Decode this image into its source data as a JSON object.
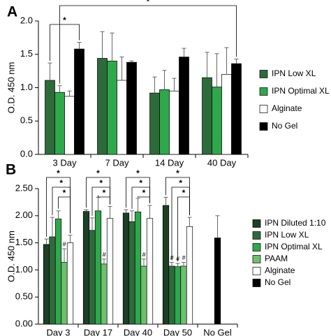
{
  "chart_data": [
    {
      "type": "bar",
      "panel_label": "A",
      "y_label": "O.D. 450 nm",
      "categories": [
        "3 Day",
        "7 Day",
        "14 Day",
        "40 Day"
      ],
      "series": [
        {
          "name": "IPN Low XL",
          "color": "#2e6b3b",
          "values": [
            1.11,
            1.44,
            0.92,
            1.15
          ],
          "errors": [
            0.26,
            0.4,
            0.24,
            0.38
          ]
        },
        {
          "name": "IPN Optimal XL",
          "color": "#2fa84c",
          "values": [
            0.93,
            1.4,
            0.97,
            1.01
          ],
          "errors": [
            0.1,
            0.42,
            0.29,
            0.5
          ]
        },
        {
          "name": "Alginate",
          "color": "#ffffff",
          "values": [
            0.87,
            1.11,
            0.95,
            1.2
          ],
          "errors": [
            0.08,
            0.35,
            0.19,
            0.4
          ]
        },
        {
          "name": "No Gel",
          "color": "#000000",
          "values": [
            1.58,
            1.38,
            1.46,
            1.36
          ],
          "errors": [
            0.1,
            0.02,
            0.13,
            0.07
          ]
        }
      ],
      "significance": [
        "*",
        "*"
      ],
      "ylim": [
        0,
        2
      ],
      "yticks": [
        {
          "value": 0,
          "label": "0.0"
        },
        {
          "value": 0.5,
          "label": "0.5"
        },
        {
          "value": 1,
          "label": "1.0"
        },
        {
          "value": 1.5,
          "label": "1.5"
        },
        {
          "value": 2,
          "label": "2.0"
        }
      ]
    },
    {
      "type": "bar",
      "panel_label": "B",
      "y_label": "O.D. 450 nm",
      "categories": [
        "Day 3",
        "Day 17",
        "Day 40",
        "Day 50",
        "No Gel"
      ],
      "series": [
        {
          "name": "IPN Diluted 1:10",
          "color": "#1d3f24",
          "values": [
            1.47,
            2.08,
            2.05,
            2.19,
            null
          ],
          "errors": [
            0.1,
            0.03,
            0.06,
            0.15,
            null
          ]
        },
        {
          "name": "IPN Low XL",
          "color": "#2e6b3b",
          "values": [
            1.61,
            1.73,
            1.89,
            1.07,
            null
          ],
          "errors": [
            0.36,
            0.23,
            0.2,
            0.07,
            null
          ],
          "annotations": [
            null,
            null,
            null,
            "#",
            null
          ]
        },
        {
          "name": "IPN Optimal XL",
          "color": "#2fa84c",
          "values": [
            1.94,
            2.09,
            2.07,
            1.06,
            null
          ],
          "errors": [
            0.15,
            0.25,
            0.25,
            0.06,
            null
          ],
          "annotations": [
            null,
            null,
            null,
            "#",
            null
          ]
        },
        {
          "name": "PAAM",
          "color": "#6cc16a",
          "values": [
            1.14,
            1.11,
            1.07,
            1.07,
            null
          ],
          "errors": [
            0.25,
            0.09,
            0.13,
            0.07,
            null
          ],
          "annotations": [
            "#",
            "#",
            "#",
            "#",
            null
          ]
        },
        {
          "name": "Alginate",
          "color": "#ffffff",
          "values": [
            1.5,
            1.95,
            1.95,
            1.8,
            null
          ],
          "errors": [
            0.14,
            0.22,
            0.24,
            0.17,
            null
          ]
        },
        {
          "name": "No Gel",
          "color": "#000000",
          "values": [
            null,
            null,
            null,
            null,
            1.59
          ],
          "errors": [
            null,
            null,
            null,
            null,
            0.41
          ]
        }
      ],
      "significance": [
        [
          "*",
          "*",
          "*"
        ],
        [
          "*",
          "*",
          "*"
        ],
        [
          "*",
          "*",
          "*"
        ],
        [
          "*",
          "*",
          "*"
        ],
        null
      ],
      "ylim": [
        0,
        2.5
      ],
      "yticks": [
        {
          "value": 0,
          "label": "0.00"
        },
        {
          "value": 0.5,
          "label": "0.50"
        },
        {
          "value": 1,
          "label": "1.00"
        },
        {
          "value": 1.5,
          "label": "1.50"
        },
        {
          "value": 2,
          "label": "2.00"
        },
        {
          "value": 2.5,
          "label": "2.50"
        }
      ]
    }
  ]
}
